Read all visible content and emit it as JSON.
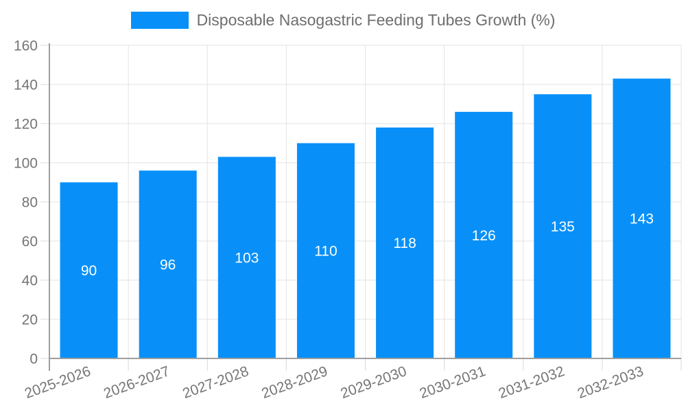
{
  "chart_data": {
    "type": "bar",
    "title": "Disposable Nasogastric Feeding Tubes Growth (%)",
    "categories": [
      "2025-2026",
      "2026-2027",
      "2027-2028",
      "2028-2029",
      "2029-2030",
      "2030-2031",
      "2031-2032",
      "2032-2033"
    ],
    "values": [
      90,
      96,
      103,
      110,
      118,
      126,
      135,
      143
    ],
    "bar_value_labels": [
      "90",
      "96",
      "103",
      "110",
      "118",
      "126",
      "135",
      "143"
    ],
    "xlabel": "",
    "ylabel": "",
    "ylim": [
      0,
      160
    ],
    "ytick_step": 20,
    "ytick_labels": [
      "0",
      "20",
      "40",
      "60",
      "80",
      "100",
      "120",
      "140",
      "160"
    ],
    "grid": true,
    "legend_position": "top",
    "colors": {
      "bar": "#0890f8",
      "bar_value_text": "#ffffff",
      "axis_line": "#9e9e9e",
      "grid_line": "#e3e3e3",
      "tick_line": "#d9d9d9",
      "axis_text": "#757575",
      "legend_text": "#6e6e6e",
      "background": "#ffffff"
    }
  }
}
